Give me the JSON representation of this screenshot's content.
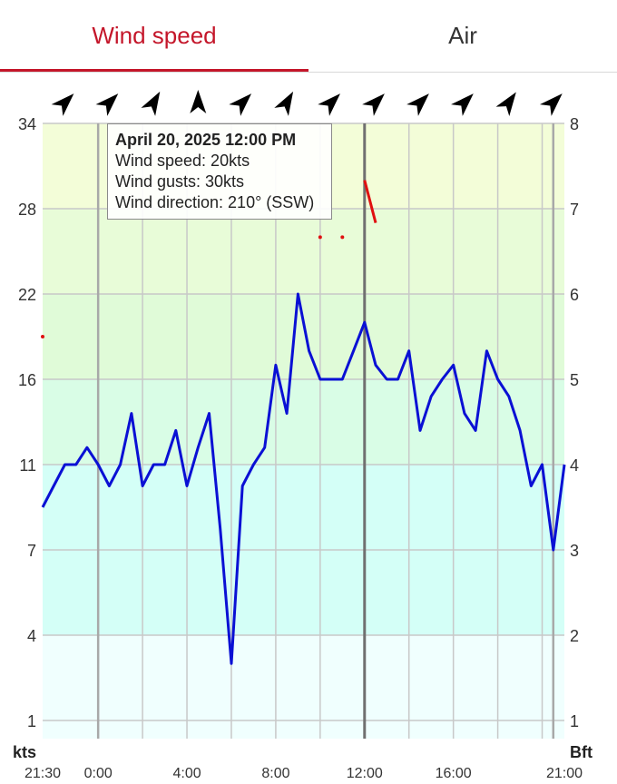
{
  "tabs": [
    {
      "label": "Wind speed",
      "active": true
    },
    {
      "label": "Air",
      "active": false
    }
  ],
  "colors": {
    "accent": "#c4162a",
    "speed_line": "#0a10d4",
    "gust_marks": "#e01010",
    "grid": "#c8c8c8",
    "current_time_line": "#707070",
    "day_line": "#a8a8a8"
  },
  "tooltip": {
    "title": "April 20, 2025 12:00 PM",
    "line1": "Wind speed: 20kts",
    "line2": "Wind gusts: 30kts",
    "line3": "Wind direction: 210° (SSW)"
  },
  "chart_data": {
    "type": "line",
    "x_ticks": [
      "21:30",
      "0:00",
      "4:00",
      "8:00",
      "12:00",
      "16:00",
      "21:00"
    ],
    "x_tick_hours": [
      -2.5,
      0,
      4,
      8,
      12,
      16,
      21
    ],
    "x_range_hours": [
      -2.5,
      21
    ],
    "left_axis": {
      "unit": "kts",
      "ticks": [
        1,
        4,
        7,
        11,
        16,
        22,
        28,
        34
      ]
    },
    "right_axis": {
      "unit": "Bft",
      "ticks": [
        1,
        2,
        3,
        4,
        5,
        6,
        7,
        8
      ]
    },
    "grid": true,
    "current_time_hour": 12,
    "day_boundary_hours": [
      0,
      20.5
    ],
    "series": [
      {
        "name": "Wind speed",
        "hours": [
          -2.5,
          -2,
          -1.5,
          -1,
          -0.5,
          0,
          0.5,
          1,
          1.5,
          2,
          2.5,
          3,
          3.5,
          4,
          4.5,
          5,
          5.5,
          6,
          6.5,
          7,
          7.5,
          8,
          8.5,
          9,
          9.5,
          10,
          10.5,
          11,
          11.5,
          12,
          12.5,
          13,
          13.5,
          14,
          14.5,
          15,
          15.5,
          16,
          16.5,
          17,
          17.5,
          18,
          18.5,
          19,
          19.5,
          20,
          20.5,
          21
        ],
        "values": [
          9,
          10,
          11,
          11,
          12,
          11,
          10,
          11,
          14,
          10,
          11,
          11,
          13,
          10,
          12,
          14,
          8,
          3,
          10,
          11,
          12,
          17,
          14,
          22,
          18,
          16,
          16,
          16,
          18,
          20,
          17,
          16,
          16,
          18,
          13,
          15,
          16,
          17,
          14,
          13,
          18,
          16,
          15,
          13,
          10,
          11,
          7,
          11
        ]
      },
      {
        "name": "Wind gusts",
        "marks": [
          {
            "hours": -2.5,
            "values": [
              19
            ]
          },
          {
            "hours": 10,
            "values": [
              26
            ]
          },
          {
            "hours": 11,
            "values": [
              26
            ]
          },
          {
            "hours": [
              12,
              12.5
            ],
            "values": [
              30,
              27
            ]
          }
        ]
      }
    ],
    "direction_arrows": {
      "hours": [
        -1.5,
        0.5,
        2.5,
        4.5,
        6.5,
        8.5,
        10.5,
        12.5,
        14.5,
        16.5,
        18.5,
        20.5
      ],
      "degrees": [
        225,
        225,
        210,
        180,
        225,
        210,
        225,
        225,
        225,
        225,
        215,
        225
      ]
    },
    "background_bands_kts": [
      {
        "from": 0,
        "to": 4,
        "color": "#f0fffe"
      },
      {
        "from": 4,
        "to": 11,
        "color": "#d4fff7"
      },
      {
        "from": 11,
        "to": 16,
        "color": "#d9fde6"
      },
      {
        "from": 16,
        "to": 22,
        "color": "#e0fbd8"
      },
      {
        "from": 22,
        "to": 28,
        "color": "#e8fcd8"
      },
      {
        "from": 28,
        "to": 34,
        "color": "#f3fdd8"
      }
    ]
  }
}
